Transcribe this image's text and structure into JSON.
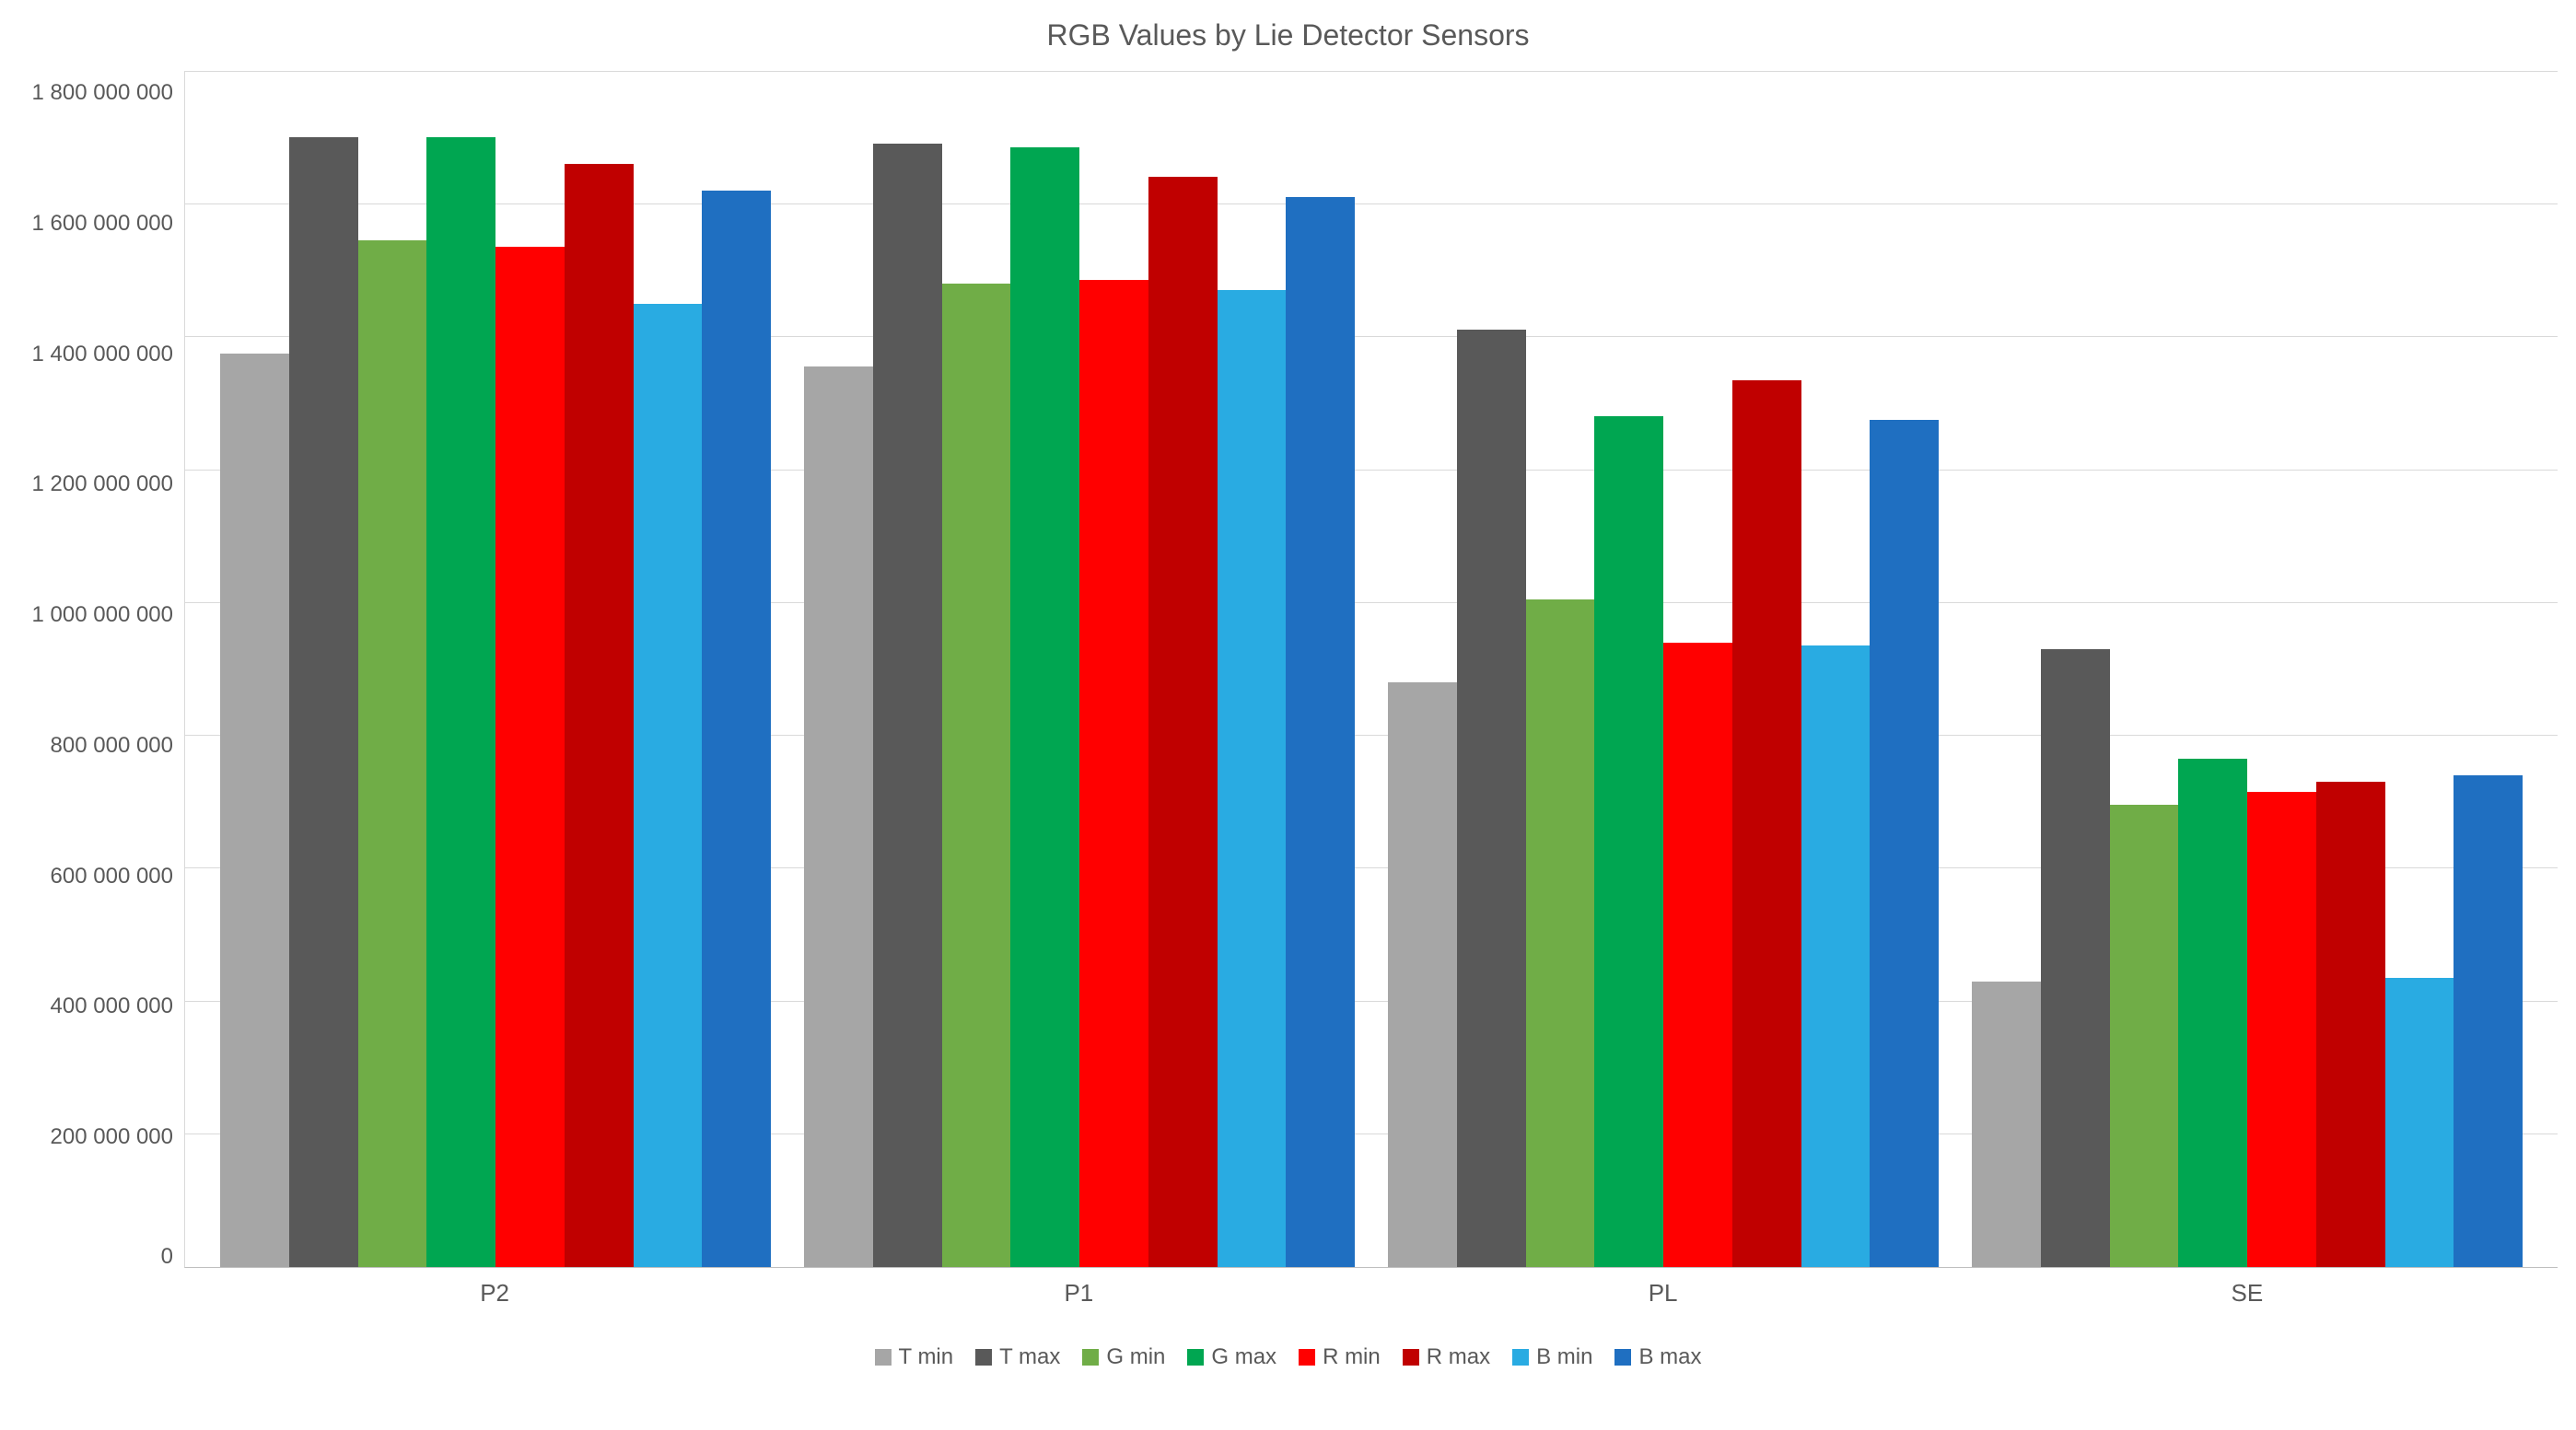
{
  "chart": {
    "type": "bar",
    "title": "RGB Values by Lie Detector Sensors",
    "title_fontsize": 32,
    "title_color": "#595959",
    "label_fontsize": 26,
    "label_color": "#595959",
    "background_color": "#ffffff",
    "grid_color": "#d9d9d9",
    "axis_color": "#bfbfbf",
    "y_axis": {
      "min": 0,
      "max": 1800000000,
      "tick_step": 200000000,
      "ticks": [
        "1 800 000 000",
        "1 600 000 000",
        "1 400 000 000",
        "1 200 000 000",
        "1 000 000 000",
        "800 000 000",
        "600 000 000",
        "400 000 000",
        "200 000 000",
        "0"
      ]
    },
    "categories": [
      "P2",
      "P1",
      "PL",
      "SE"
    ],
    "series": [
      {
        "name": "T min",
        "color": "#a6a6a6",
        "values": [
          1375000000,
          1355000000,
          880000000,
          430000000
        ]
      },
      {
        "name": "T max",
        "color": "#595959",
        "values": [
          1700000000,
          1690000000,
          1410000000,
          930000000
        ]
      },
      {
        "name": "G min",
        "color": "#70ad47",
        "values": [
          1545000000,
          1480000000,
          1005000000,
          695000000
        ]
      },
      {
        "name": "G max",
        "color": "#00a651",
        "values": [
          1700000000,
          1685000000,
          1280000000,
          765000000
        ]
      },
      {
        "name": "R min",
        "color": "#ff0000",
        "values": [
          1535000000,
          1485000000,
          940000000,
          715000000
        ]
      },
      {
        "name": "R max",
        "color": "#c00000",
        "values": [
          1660000000,
          1640000000,
          1335000000,
          730000000
        ]
      },
      {
        "name": "B min",
        "color": "#29abe2",
        "values": [
          1450000000,
          1470000000,
          935000000,
          435000000
        ]
      },
      {
        "name": "B max",
        "color": "#1f6fc1",
        "values": [
          1620000000,
          1610000000,
          1275000000,
          740000000
        ]
      }
    ],
    "bar_gap_ratio": 0.0,
    "group_padding_ratio": 0.08
  }
}
